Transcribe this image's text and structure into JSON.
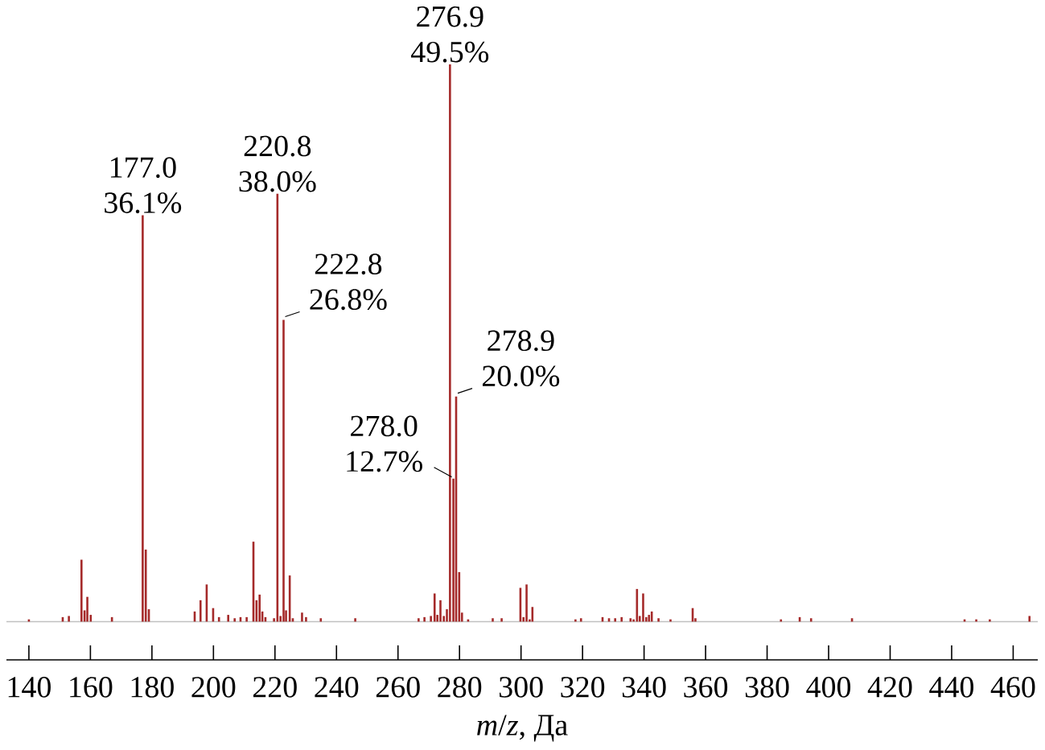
{
  "chart_data": {
    "type": "bar",
    "xlabel": "*m*/*z*, Да",
    "x": [
      140.0,
      151.0,
      153.0,
      157.1,
      158.1,
      159.0,
      160.1,
      167.0,
      177.0,
      178.0,
      179.0,
      193.9,
      195.8,
      197.8,
      199.9,
      201.8,
      204.8,
      206.9,
      208.8,
      210.8,
      213.0,
      214.0,
      215.0,
      215.9,
      216.9,
      219.7,
      220.8,
      221.8,
      222.8,
      223.6,
      224.8,
      225.8,
      228.8,
      230.1,
      234.9,
      246.1,
      266.7,
      268.6,
      270.7,
      271.9,
      272.8,
      273.8,
      274.9,
      275.9,
      276.9,
      278.0,
      278.9,
      279.9,
      280.8,
      282.8,
      290.8,
      293.7,
      299.8,
      300.8,
      301.8,
      302.8,
      303.7,
      317.7,
      319.5,
      326.5,
      328.6,
      330.6,
      332.7,
      335.6,
      336.6,
      337.7,
      338.6,
      339.7,
      340.7,
      341.6,
      342.5,
      344.7,
      348.6,
      355.8,
      356.7,
      384.5,
      390.6,
      394.3,
      407.6,
      444.2,
      448.0,
      452.4,
      465.3
    ],
    "values": [
      0.2,
      0.4,
      0.5,
      5.5,
      1.0,
      2.2,
      0.6,
      0.4,
      36.1,
      6.4,
      1.1,
      0.9,
      1.9,
      3.3,
      1.2,
      0.4,
      0.6,
      0.3,
      0.4,
      0.4,
      7.1,
      1.9,
      2.4,
      0.9,
      0.4,
      0.3,
      38.0,
      0.5,
      26.8,
      1.0,
      4.1,
      0.3,
      0.8,
      0.4,
      0.3,
      0.3,
      0.3,
      0.4,
      0.5,
      2.5,
      0.6,
      1.9,
      0.5,
      1.1,
      49.5,
      12.7,
      20.0,
      4.4,
      0.8,
      0.2,
      0.3,
      0.3,
      3.0,
      0.4,
      3.3,
      0.2,
      1.3,
      0.2,
      0.3,
      0.4,
      0.3,
      0.3,
      0.4,
      0.3,
      0.2,
      2.9,
      0.5,
      2.5,
      0.4,
      0.6,
      0.9,
      0.3,
      0.2,
      1.2,
      0.3,
      0.2,
      0.4,
      0.3,
      0.3,
      0.2,
      0.2,
      0.2,
      0.5
    ],
    "value_labels": [
      null,
      null,
      null,
      null,
      null,
      null,
      null,
      null,
      "177.0 36.1%",
      null,
      null,
      null,
      null,
      null,
      null,
      null,
      null,
      null,
      null,
      null,
      null,
      null,
      null,
      null,
      null,
      null,
      "220.8 38.0%",
      null,
      "222.8 26.8%",
      null,
      null,
      null,
      null,
      null,
      null,
      null,
      null,
      null,
      null,
      null,
      null,
      null,
      null,
      null,
      "276.9 49.5%",
      "278.0 12.7%",
      "278.9 20.0%",
      null,
      null,
      null,
      null,
      null,
      null,
      null,
      null,
      null,
      null,
      null,
      null,
      null,
      null,
      null,
      null,
      null,
      null,
      null,
      null,
      null,
      null,
      null,
      null,
      null,
      null,
      null,
      null,
      null,
      null,
      null,
      null,
      null,
      null,
      null,
      null
    ],
    "color": "#a52a2a",
    "xlim": [
      132.7,
      468
    ],
    "xticks": [
      140,
      160,
      180,
      200,
      220,
      240,
      260,
      280,
      300,
      320,
      340,
      360,
      380,
      400,
      420,
      440,
      460
    ],
    "tick_labels": "x",
    "ref_lines": [
      {
        "axis": "y",
        "value": 0,
        "color": "#c0c0c0"
      }
    ]
  }
}
